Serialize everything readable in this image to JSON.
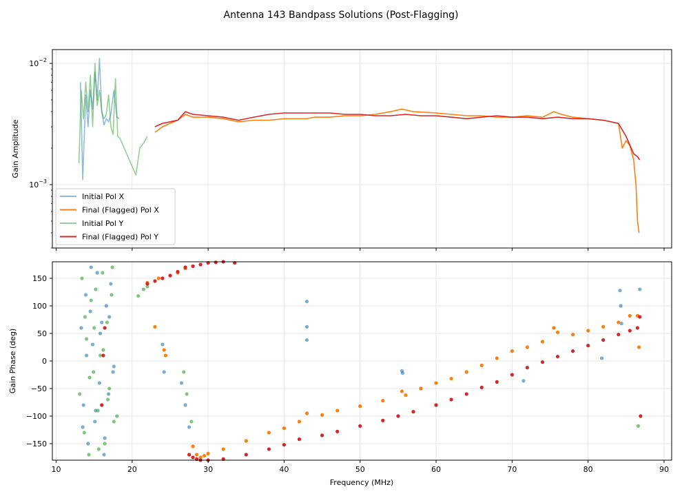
{
  "figure_title": "Antenna 143 Bandpass Solutions (Post-Flagging)",
  "chart_data": [
    {
      "type": "line",
      "name": "amplitude",
      "xlim": [
        9.5,
        91
      ],
      "ylim": [
        0.0003,
        0.013
      ],
      "yscale": "log",
      "ylabel": "Gain Amplitude",
      "xlabel": "",
      "grid": true,
      "legend_position": "lower-left",
      "yticks": [
        {
          "value": 0.01,
          "base": "10",
          "exp": "−2"
        },
        {
          "value": 0.001,
          "base": "10",
          "exp": "−3"
        }
      ],
      "series": [
        {
          "name": "Initial Pol X",
          "color": "#1f77b4",
          "alpha": 0.5,
          "x": [
            13.2,
            13.5,
            13.9,
            14.2,
            14.5,
            14.8,
            15.1,
            15.4,
            15.7,
            16.0,
            16.3,
            16.6,
            16.9,
            17.2,
            17.6,
            18.0,
            18.3
          ],
          "y": [
            0.007,
            0.0011,
            0.0055,
            0.003,
            0.006,
            0.0042,
            0.0085,
            0.005,
            0.011,
            0.004,
            0.0031,
            0.0035,
            0.0033,
            0.0038,
            0.006,
            0.0036,
            0.0035
          ]
        },
        {
          "name": "Final (Flagged) Pol X",
          "color": "#ff7f0e",
          "alpha": 1.0,
          "x": [
            23.0,
            24.0,
            25.0,
            26.0,
            27.0,
            28.0,
            30.0,
            32.0,
            34.0,
            36.0,
            38.0,
            40.0,
            42.0,
            43.0,
            44.0,
            46.0,
            48.0,
            50.0,
            52.0,
            54.0,
            55.5,
            57.0,
            60.0,
            62.0,
            64.0,
            66.0,
            68.0,
            70.0,
            72.0,
            74.0,
            75.5,
            76.5,
            78.0,
            80.0,
            82.0,
            84.0,
            84.5,
            85.0,
            85.5,
            86.0,
            86.3,
            86.5,
            86.7
          ],
          "y": [
            0.0027,
            0.003,
            0.0032,
            0.0034,
            0.0038,
            0.0036,
            0.0036,
            0.0035,
            0.0033,
            0.0034,
            0.0034,
            0.0035,
            0.0035,
            0.0035,
            0.0036,
            0.0036,
            0.0037,
            0.0037,
            0.0038,
            0.004,
            0.0042,
            0.004,
            0.0039,
            0.0038,
            0.0037,
            0.0037,
            0.0036,
            0.0036,
            0.0037,
            0.0036,
            0.004,
            0.0038,
            0.0036,
            0.0035,
            0.0034,
            0.0032,
            0.002,
            0.0023,
            0.0021,
            0.0016,
            0.001,
            0.0005,
            0.0004
          ]
        },
        {
          "name": "Initial Pol Y",
          "color": "#2ca02c",
          "alpha": 0.5,
          "x": [
            13.0,
            13.3,
            13.6,
            13.9,
            14.2,
            14.5,
            14.8,
            15.1,
            15.4,
            15.7,
            16.0,
            16.3,
            16.6,
            16.9,
            17.2,
            17.5,
            17.8,
            18.1,
            18.4,
            20.5,
            21.0,
            21.5,
            22.0
          ],
          "y": [
            0.0015,
            0.006,
            0.0035,
            0.007,
            0.004,
            0.008,
            0.003,
            0.01,
            0.0045,
            0.006,
            0.004,
            0.0035,
            0.0038,
            0.0055,
            0.003,
            0.0026,
            0.0075,
            0.0025,
            0.0024,
            0.0012,
            0.002,
            0.0022,
            0.0025
          ]
        },
        {
          "name": "Final (Flagged) Pol Y",
          "color": "#d62728",
          "alpha": 1.0,
          "x": [
            23.0,
            24.0,
            25.0,
            26.0,
            27.0,
            28.0,
            30.0,
            32.0,
            34.0,
            36.0,
            38.0,
            40.0,
            42.0,
            44.0,
            46.0,
            48.0,
            50.0,
            52.0,
            54.0,
            56.0,
            58.0,
            60.0,
            62.0,
            64.0,
            66.0,
            68.0,
            70.0,
            72.0,
            74.0,
            76.0,
            78.0,
            80.0,
            82.0,
            84.0,
            85.0,
            86.0,
            86.5,
            86.8
          ],
          "y": [
            0.003,
            0.0032,
            0.0033,
            0.0034,
            0.004,
            0.0038,
            0.0037,
            0.0036,
            0.0034,
            0.0036,
            0.0038,
            0.0039,
            0.0039,
            0.0039,
            0.0039,
            0.0038,
            0.0038,
            0.0037,
            0.0037,
            0.0038,
            0.0037,
            0.0037,
            0.0036,
            0.0035,
            0.0036,
            0.0037,
            0.0036,
            0.0036,
            0.0035,
            0.0036,
            0.0035,
            0.0035,
            0.0034,
            0.0032,
            0.0025,
            0.0018,
            0.0017,
            0.0016
          ]
        }
      ]
    },
    {
      "type": "scatter",
      "name": "phase",
      "xlim": [
        9.5,
        91
      ],
      "ylim": [
        -180,
        180
      ],
      "ylabel": "Gain Phase (deg)",
      "xlabel": "Frequency (MHz)",
      "grid": true,
      "xticks": [
        10,
        20,
        30,
        40,
        50,
        60,
        70,
        80,
        90
      ],
      "yticks": [
        -150,
        -100,
        -50,
        0,
        50,
        100,
        150
      ],
      "series": [
        {
          "name": "Initial Pol X",
          "color": "#1f77b4",
          "alpha": 0.6,
          "x": [
            13.3,
            13.6,
            13.9,
            14.2,
            14.5,
            14.8,
            15.1,
            15.4,
            15.7,
            16.0,
            16.3,
            16.6,
            16.9,
            17.2,
            17.5,
            13.5,
            14.0,
            14.6,
            15.2,
            15.8,
            16.4,
            17.0,
            17.6,
            24.0,
            24.2,
            26.5,
            27.0,
            27.5,
            43.0,
            43.0,
            43.0,
            55.5,
            55.6,
            71.5,
            81.8,
            84.2,
            84.3,
            84.4,
            86.8
          ],
          "y": [
            60,
            -80,
            120,
            -150,
            90,
            30,
            -110,
            160,
            -40,
            70,
            -170,
            100,
            -60,
            140,
            -20,
            -120,
            10,
            170,
            -90,
            50,
            -140,
            80,
            -10,
            30,
            -20,
            -40,
            -80,
            -120,
            108,
            62,
            38,
            -18,
            -22,
            -36,
            5,
            128,
            100,
            68,
            130
          ]
        },
        {
          "name": "Final (Flagged) Pol X",
          "color": "#ff7f0e",
          "alpha": 1.0,
          "x": [
            22.0,
            23.0,
            23.5,
            24.2,
            24.4,
            25.0,
            26.0,
            27.0,
            28.0,
            28.5,
            29.0,
            29.5,
            30.0,
            32.0,
            35.0,
            38.0,
            40.0,
            42.0,
            43.0,
            45.0,
            47.0,
            50.0,
            53.0,
            55.5,
            56.0,
            58.0,
            60.0,
            62.0,
            64.0,
            66.0,
            68.0,
            70.0,
            72.0,
            74.0,
            75.5,
            76.0,
            78.0,
            80.0,
            82.0,
            84.0,
            85.5,
            86.5,
            86.7
          ],
          "y": [
            142,
            62,
            150,
            20,
            10,
            155,
            160,
            168,
            -155,
            -170,
            -175,
            -172,
            -168,
            -160,
            -145,
            -130,
            -122,
            -110,
            -95,
            -98,
            -90,
            -82,
            -72,
            -55,
            -62,
            -50,
            -40,
            -32,
            -20,
            -8,
            5,
            18,
            25,
            35,
            60,
            52,
            48,
            55,
            62,
            70,
            82,
            82,
            25
          ]
        },
        {
          "name": "Initial Pol Y",
          "color": "#2ca02c",
          "alpha": 0.6,
          "x": [
            13.1,
            13.4,
            13.7,
            14.0,
            14.3,
            14.6,
            14.9,
            15.2,
            15.5,
            15.8,
            16.1,
            16.4,
            16.7,
            17.0,
            17.3,
            17.6,
            18.0,
            13.8,
            14.4,
            15.0,
            15.6,
            16.2,
            16.8,
            17.4,
            20.8,
            21.5,
            22.0,
            26.8,
            27.2,
            27.8,
            86.6
          ],
          "y": [
            -60,
            150,
            -130,
            40,
            -170,
            110,
            -20,
            130,
            -90,
            10,
            160,
            -150,
            70,
            -50,
            120,
            -110,
            -100,
            80,
            -30,
            60,
            -160,
            20,
            -70,
            170,
            118,
            130,
            135,
            -20,
            -60,
            -110,
            -118
          ]
        },
        {
          "name": "Final (Flagged) Pol Y",
          "color": "#d62728",
          "alpha": 1.0,
          "x": [
            16.0,
            16.2,
            16.4,
            22.0,
            23.0,
            24.0,
            25.0,
            26.0,
            27.0,
            28.0,
            29.0,
            30.0,
            31.0,
            32.0,
            33.5,
            27.5,
            28.0,
            28.5,
            29.0,
            30.0,
            32.0,
            35.0,
            38.0,
            40.0,
            42.0,
            45.0,
            47.0,
            50.0,
            53.0,
            55.0,
            57.0,
            60.0,
            62.0,
            64.0,
            66.0,
            68.0,
            70.0,
            72.0,
            74.0,
            76.0,
            78.0,
            80.0,
            82.0,
            84.0,
            85.5,
            86.5,
            86.8,
            86.9
          ],
          "y": [
            -80,
            10,
            60,
            140,
            145,
            150,
            155,
            162,
            170,
            172,
            175,
            178,
            179,
            180,
            178,
            -170,
            -175,
            -178,
            -180,
            -180,
            -178,
            -170,
            -160,
            -152,
            -142,
            -135,
            -128,
            -118,
            -108,
            -100,
            -92,
            -80,
            -70,
            -60,
            -48,
            -38,
            -25,
            -12,
            -2,
            8,
            18,
            28,
            38,
            48,
            55,
            60,
            80,
            -100
          ]
        }
      ]
    }
  ]
}
